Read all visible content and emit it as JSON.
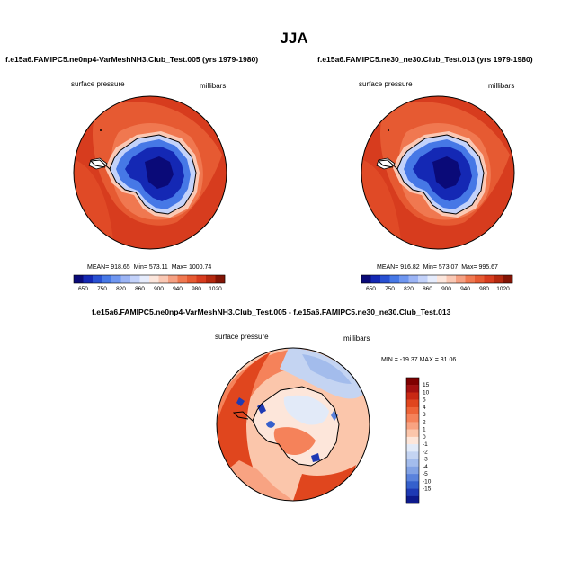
{
  "main_title": "JJA",
  "panels": [
    {
      "title": "f.e15a6.FAMIPC5.ne0np4-VarMeshNH3.Club_Test.005 (yrs 1979-1980)",
      "left_label": "surface pressure",
      "right_label": "millibars",
      "stats": {
        "mean_label": "MEAN=",
        "mean": "918.65",
        "min_label": "Min=",
        "min": "573.11",
        "max_label": "Max=",
        "max": "1000.74"
      }
    },
    {
      "title": "f.e15a6.FAMIPC5.ne30_ne30.Club_Test.013 (yrs 1979-1980)",
      "left_label": "surface pressure",
      "right_label": "millibars",
      "stats": {
        "mean_label": "MEAN=",
        "mean": "916.82",
        "min_label": "Min=",
        "min": "573.07",
        "max_label": "Max=",
        "max": "995.67"
      }
    },
    {
      "title": "f.e15a6.FAMIPC5.ne0np4-VarMeshNH3.Club_Test.005 - f.e15a6.FAMIPC5.ne30_ne30.Club_Test.013",
      "left_label": "surface pressure",
      "right_label": "millibars",
      "minmax": "MIN = -19.37 MAX =  31.06"
    }
  ],
  "chart_data": [
    {
      "type": "heatmap",
      "projection": "south-polar-stereographic",
      "title": "f.e15a6.FAMIPC5.ne0np4-VarMeshNH3.Club_Test.005 (yrs 1979-1980)",
      "variable": "surface pressure",
      "units": "millibars",
      "mean": 918.65,
      "min": 573.11,
      "max": 1000.74,
      "colorbar": {
        "orientation": "horizontal",
        "levels": [
          650,
          700,
          750,
          800,
          820,
          840,
          860,
          880,
          900,
          920,
          940,
          960,
          980,
          1000,
          1020
        ],
        "labels": [
          "650",
          "750",
          "820",
          "860",
          "900",
          "940",
          "980",
          "1020"
        ],
        "colors": [
          "#0a0a78",
          "#1428b4",
          "#2850d2",
          "#4678e6",
          "#6e96f0",
          "#9bb4f5",
          "#c3d2fa",
          "#e6ecfc",
          "#fce6dc",
          "#fac8b4",
          "#f5a082",
          "#f07850",
          "#e65a32",
          "#d73c1e",
          "#b4280f",
          "#821405"
        ]
      }
    },
    {
      "type": "heatmap",
      "projection": "south-polar-stereographic",
      "title": "f.e15a6.FAMIPC5.ne30_ne30.Club_Test.013 (yrs 1979-1980)",
      "variable": "surface pressure",
      "units": "millibars",
      "mean": 916.82,
      "min": 573.07,
      "max": 995.67,
      "colorbar": {
        "orientation": "horizontal",
        "levels": [
          650,
          700,
          750,
          800,
          820,
          840,
          860,
          880,
          900,
          920,
          940,
          960,
          980,
          1000,
          1020
        ],
        "labels": [
          "650",
          "750",
          "820",
          "860",
          "900",
          "940",
          "980",
          "1020"
        ],
        "colors": [
          "#0a0a78",
          "#1428b4",
          "#2850d2",
          "#4678e6",
          "#6e96f0",
          "#9bb4f5",
          "#c3d2fa",
          "#e6ecfc",
          "#fce6dc",
          "#fac8b4",
          "#f5a082",
          "#f07850",
          "#e65a32",
          "#d73c1e",
          "#b4280f",
          "#821405"
        ]
      }
    },
    {
      "type": "heatmap",
      "projection": "south-polar-stereographic",
      "title": "f.e15a6.FAMIPC5.ne0np4-VarMeshNH3.Club_Test.005 - f.e15a6.FAMIPC5.ne30_ne30.Club_Test.013",
      "variable": "surface pressure",
      "units": "millibars",
      "min": -19.37,
      "max": 31.06,
      "colorbar": {
        "orientation": "vertical",
        "labels": [
          "15",
          "10",
          "5",
          "4",
          "3",
          "2",
          "1",
          "0",
          "-1",
          "-2",
          "-3",
          "-4",
          "-5",
          "-10",
          "-15"
        ],
        "colors": [
          "#7f0000",
          "#a31010",
          "#c82814",
          "#e0461e",
          "#ee6438",
          "#f5825a",
          "#f8a382",
          "#fbc6ab",
          "#fde6da",
          "#e2eaf8",
          "#c4d4f2",
          "#a3bcec",
          "#82a2e4",
          "#5a82dc",
          "#3560cc",
          "#1e3ab4",
          "#0d1a8c"
        ]
      }
    }
  ]
}
